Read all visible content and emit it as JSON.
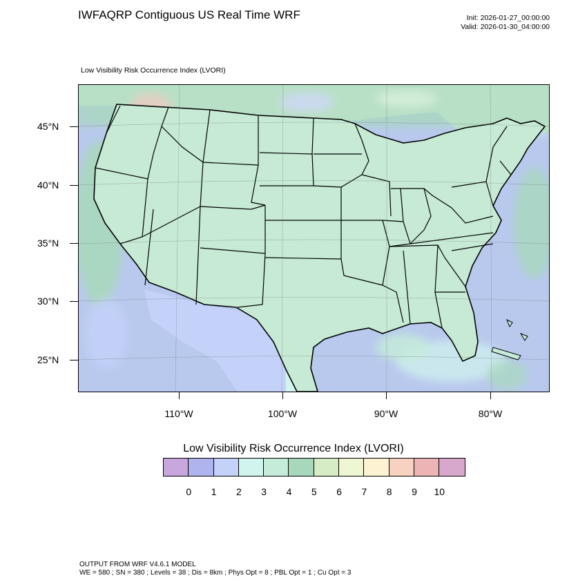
{
  "header": {
    "title": "IWFAQRP Contiguous US Real Time WRF",
    "init": "Init: 2026-01-27_00:00:00",
    "valid": "Valid: 2026-01-30_04:00:00"
  },
  "map": {
    "subtitle": "Low Visibility Risk Occurrence Index   (LVORI)",
    "lat_labels": [
      "45°N",
      "40°N",
      "35°N",
      "30°N",
      "25°N"
    ],
    "lon_labels": [
      "110°W",
      "100°W",
      "90°W",
      "80°W"
    ]
  },
  "legend": {
    "title": "Low Visibility Risk Occurrence Index  (LVORI)",
    "colors": [
      "#c8a8dc",
      "#b0b4ee",
      "#c4d2fa",
      "#d2f4ee",
      "#c4ecd8",
      "#a8d8bc",
      "#d6ecc4",
      "#eef6d4",
      "#fdf2d2",
      "#f8d2c0",
      "#ecb4b4",
      "#d8a8cc"
    ],
    "labels": [
      "0",
      "1",
      "2",
      "3",
      "4",
      "5",
      "6",
      "7",
      "8",
      "9",
      "10"
    ]
  },
  "footer": {
    "line1": "OUTPUT FROM WRF V4.6.1 MODEL",
    "line2": "WE = 580 ; SN = 380 ; Levels = 38 ; Dis = 8km ; Phys Opt = 8 ; PBL Opt = 1 ; Cu Opt = 3"
  }
}
